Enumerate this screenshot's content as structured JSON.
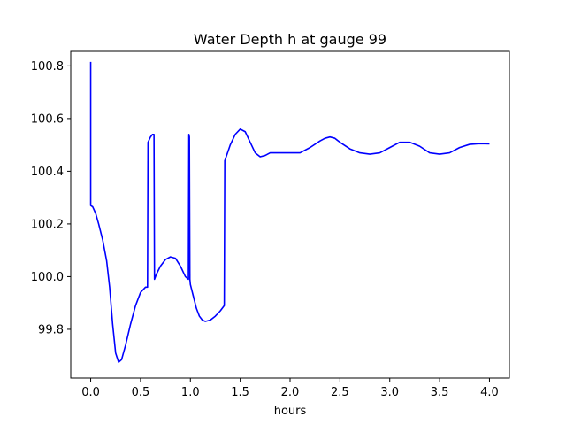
{
  "chart_data": {
    "type": "line",
    "title": "Water Depth h at gauge 99",
    "xlabel": "hours",
    "ylabel": "",
    "xlim": [
      -0.2,
      4.2
    ],
    "ylim": [
      99.615,
      100.855
    ],
    "xticks": [
      0.0,
      0.5,
      1.0,
      1.5,
      2.0,
      2.5,
      3.0,
      3.5,
      4.0
    ],
    "xtick_labels": [
      "0.0",
      "0.5",
      "1.0",
      "1.5",
      "2.0",
      "2.5",
      "3.0",
      "3.5",
      "4.0"
    ],
    "yticks": [
      99.8,
      100.0,
      100.2,
      100.4,
      100.6,
      100.8
    ],
    "ytick_labels": [
      "99.8",
      "100.0",
      "100.2",
      "100.4",
      "100.6",
      "100.8"
    ],
    "grid": false,
    "legend": "none",
    "series": [
      {
        "color": "#0000ff",
        "x": [
          0.0,
          0.0,
          0.0,
          0.02,
          0.05,
          0.08,
          0.12,
          0.16,
          0.19,
          0.22,
          0.25,
          0.28,
          0.31,
          0.35,
          0.4,
          0.45,
          0.5,
          0.55,
          0.57,
          0.575,
          0.6,
          0.62,
          0.635,
          0.64,
          0.66,
          0.7,
          0.75,
          0.8,
          0.85,
          0.9,
          0.95,
          0.98,
          0.985,
          0.99,
          0.995,
          1.0,
          1.03,
          1.06,
          1.09,
          1.12,
          1.15,
          1.2,
          1.25,
          1.3,
          1.34,
          1.345,
          1.35,
          1.4,
          1.45,
          1.5,
          1.55,
          1.6,
          1.65,
          1.7,
          1.75,
          1.8,
          1.85,
          1.9,
          2.0,
          2.1,
          2.2,
          2.3,
          2.35,
          2.4,
          2.45,
          2.5,
          2.6,
          2.7,
          2.8,
          2.9,
          3.0,
          3.1,
          3.2,
          3.3,
          3.4,
          3.5,
          3.6,
          3.7,
          3.8,
          3.9,
          4.0
        ],
        "y": [
          100.815,
          100.815,
          100.27,
          100.265,
          100.24,
          100.2,
          100.14,
          100.06,
          99.96,
          99.82,
          99.71,
          99.675,
          99.685,
          99.74,
          99.82,
          99.89,
          99.94,
          99.96,
          99.96,
          100.51,
          100.53,
          100.54,
          100.54,
          99.99,
          100.01,
          100.04,
          100.065,
          100.075,
          100.07,
          100.04,
          100.0,
          99.99,
          100.54,
          100.53,
          99.99,
          99.97,
          99.925,
          99.88,
          99.85,
          99.835,
          99.83,
          99.835,
          99.85,
          99.87,
          99.89,
          100.44,
          100.445,
          100.5,
          100.54,
          100.56,
          100.55,
          100.51,
          100.47,
          100.455,
          100.46,
          100.47,
          100.47,
          100.47,
          100.47,
          100.47,
          100.49,
          100.515,
          100.525,
          100.53,
          100.525,
          100.51,
          100.485,
          100.47,
          100.465,
          100.47,
          100.49,
          100.51,
          100.51,
          100.495,
          100.47,
          100.465,
          100.47,
          100.49,
          100.502,
          100.505,
          100.504
        ]
      }
    ]
  }
}
